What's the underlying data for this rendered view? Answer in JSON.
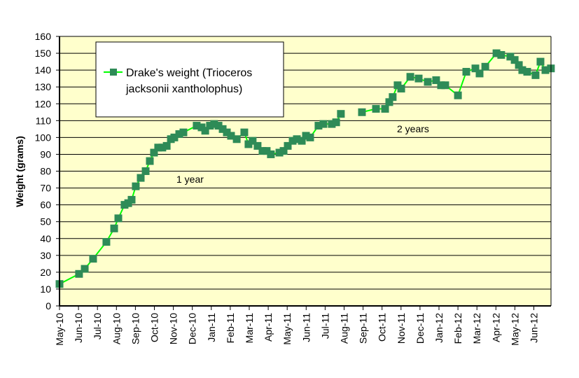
{
  "chart_data": {
    "type": "line",
    "title": "",
    "xlabel": "",
    "ylabel": "Weight (grams)",
    "ylim": [
      0,
      160
    ],
    "yticks": [
      0,
      10,
      20,
      30,
      40,
      50,
      60,
      70,
      80,
      90,
      100,
      110,
      120,
      130,
      140,
      150,
      160
    ],
    "xlim_months_since_may10": [
      0,
      25.9
    ],
    "xtick_labels": [
      "May-10",
      "Jun-10",
      "Jul-10",
      "Aug-10",
      "Sep-10",
      "Oct-10",
      "Nov-10",
      "Dec-10",
      "Jan-11",
      "Feb-11",
      "Mar-11",
      "Apr-11",
      "May-11",
      "Jun-11",
      "Jul-11",
      "Aug-11",
      "Sep-11",
      "Oct-11",
      "Nov-11",
      "Dec-11",
      "Jan-12",
      "Feb-12",
      "Mar-12",
      "Apr-12",
      "May-12",
      "Jun-12"
    ],
    "grid": "horizontal",
    "legend": {
      "placement": "top-left",
      "label_line1": "Drake's weight (Trioceros",
      "label_line2": "jacksonii xantholophus)"
    },
    "annotations": [
      {
        "text": "1 year",
        "x": 7,
        "y": 75
      },
      {
        "text": "2 years",
        "x": 19,
        "y": 104
      }
    ],
    "colors": {
      "line": "#00ff00",
      "marker": "#2e8b57",
      "plot_bg": "#ffffcc"
    },
    "series": [
      {
        "name": "Drake's weight (Trioceros jacksonii xantholophus)",
        "segments": [
          [
            [
              0,
              13
            ],
            [
              1.03,
              19
            ],
            [
              1.33,
              22
            ],
            [
              1.77,
              28
            ],
            [
              2.47,
              38
            ],
            [
              2.88,
              46
            ],
            [
              3.1,
              52
            ],
            [
              3.43,
              60
            ],
            [
              3.62,
              61
            ],
            [
              3.8,
              63
            ],
            [
              4.02,
              71
            ],
            [
              4.28,
              76
            ],
            [
              4.54,
              80
            ],
            [
              4.76,
              86
            ],
            [
              4.98,
              91
            ],
            [
              5.2,
              94
            ],
            [
              5.42,
              94
            ],
            [
              5.65,
              95
            ],
            [
              5.87,
              99
            ],
            [
              6.05,
              100
            ],
            [
              6.31,
              102
            ],
            [
              6.53,
              103
            ],
            [
              7.23,
              107
            ],
            [
              7.49,
              106
            ],
            [
              7.68,
              104
            ],
            [
              7.93,
              107
            ],
            [
              8.15,
              108
            ],
            [
              8.38,
              107
            ],
            [
              8.6,
              105
            ],
            [
              8.82,
              103
            ],
            [
              9.04,
              101
            ],
            [
              9.34,
              99
            ],
            [
              9.74,
              103
            ],
            [
              9.96,
              96
            ],
            [
              10.18,
              98
            ],
            [
              10.44,
              95
            ],
            [
              10.7,
              92
            ],
            [
              10.92,
              92
            ],
            [
              11.14,
              90
            ],
            [
              11.59,
              91
            ],
            [
              11.81,
              92
            ],
            [
              12.03,
              95
            ],
            [
              12.29,
              98
            ],
            [
              12.51,
              99
            ],
            [
              12.77,
              98
            ],
            [
              12.99,
              101
            ],
            [
              13.21,
              100
            ],
            [
              13.65,
              107
            ],
            [
              13.91,
              108
            ],
            [
              14.35,
              108
            ],
            [
              14.58,
              109
            ],
            [
              14.83,
              114
            ]
          ],
          [
            [
              15.94,
              115
            ],
            [
              16.68,
              117
            ],
            [
              17.16,
              117
            ],
            [
              17.38,
              121
            ],
            [
              17.56,
              124
            ],
            [
              17.82,
              131
            ],
            [
              18.01,
              129
            ],
            [
              18.49,
              136
            ],
            [
              18.93,
              135
            ],
            [
              19.41,
              133
            ],
            [
              19.85,
              134
            ],
            [
              20.11,
              131
            ],
            [
              20.33,
              131
            ],
            [
              21.0,
              125
            ],
            [
              21.44,
              139
            ],
            [
              21.92,
              141
            ],
            [
              22.14,
              138
            ],
            [
              22.44,
              142
            ],
            [
              23.03,
              150
            ],
            [
              23.28,
              149
            ],
            [
              23.76,
              148
            ],
            [
              23.99,
              146
            ],
            [
              24.21,
              143
            ],
            [
              24.39,
              140
            ],
            [
              24.65,
              139
            ],
            [
              25.09,
              137
            ],
            [
              25.35,
              145
            ],
            [
              25.61,
              140
            ],
            [
              25.9,
              141
            ]
          ]
        ]
      }
    ]
  }
}
